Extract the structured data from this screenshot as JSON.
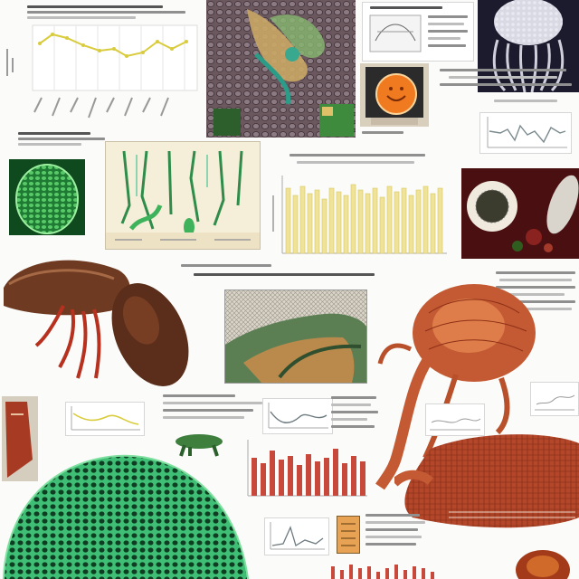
{
  "title": "",
  "colors": {
    "background": "#fbfbf9",
    "line_yellow": "#d9cc3c",
    "bar_yellow": "#efe29a",
    "bar_red": "#c8483c",
    "specimen_red": "#c45a33",
    "specimen_brown": "#6f3a22",
    "cell_green": "#2fb36a",
    "ink_gray": "#8f8f8f"
  },
  "panels": [
    {
      "name": "line-chart-top-left",
      "kind": "line-chart"
    },
    {
      "name": "cellular-tissue-micrograph",
      "kind": "illustration"
    },
    {
      "name": "radiolarian-illustration",
      "kind": "illustration"
    },
    {
      "name": "orange-specimen-photo",
      "kind": "photo"
    },
    {
      "name": "green-cell-micrograph",
      "kind": "illustration"
    },
    {
      "name": "stem-cross-section-diagram",
      "kind": "illustration"
    },
    {
      "name": "yellow-bar-chart",
      "kind": "bar-chart"
    },
    {
      "name": "petri-dish-photo",
      "kind": "photo"
    },
    {
      "name": "crustacean-illustration",
      "kind": "illustration"
    },
    {
      "name": "tissue-layer-illustration",
      "kind": "illustration"
    },
    {
      "name": "orange-arthropod-illustration",
      "kind": "illustration"
    },
    {
      "name": "red-bar-chart",
      "kind": "bar-chart"
    },
    {
      "name": "green-honeycomb-illustration",
      "kind": "illustration"
    },
    {
      "name": "red-organism-illustration",
      "kind": "illustration"
    }
  ],
  "icons": [
    "line-chart-icon",
    "bar-chart-icon",
    "specimen-icon"
  ]
}
